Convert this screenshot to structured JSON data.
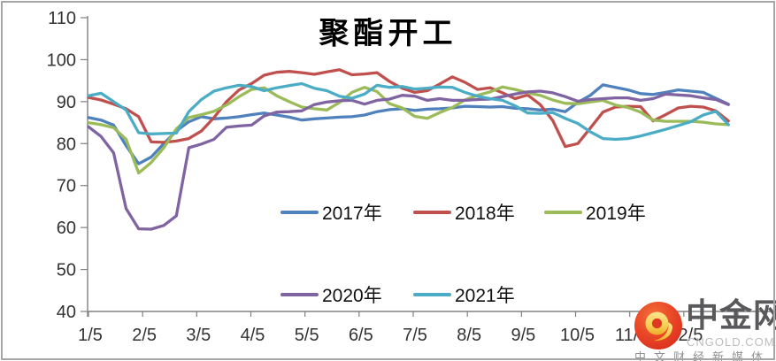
{
  "chart_data": {
    "type": "line",
    "title": "聚酯开工",
    "xlabel": "",
    "ylabel": "",
    "ylim": [
      40,
      110
    ],
    "y_ticks": [
      110,
      100,
      90,
      80,
      70,
      60,
      50,
      40
    ],
    "x_tick_labels": [
      "1/5",
      "2/5",
      "3/5",
      "4/5",
      "5/5",
      "6/5",
      "7/5",
      "8/5",
      "9/5",
      "10/5",
      "11/5",
      "12/5"
    ],
    "grid": false,
    "legend_position": "inside plot, two rows",
    "x_note": "weekly points from 1/5 to year end",
    "series": [
      {
        "name": "2017年",
        "color": "#4F81BD",
        "values": [
          86.2,
          85.6,
          84.4,
          79.5,
          75.2,
          76.8,
          80.0,
          83.0,
          85.2,
          86.4,
          85.9,
          86.1,
          86.4,
          86.9,
          87.3,
          86.8,
          86.3,
          85.6,
          85.9,
          86.1,
          86.3,
          86.4,
          86.8,
          87.6,
          88.1,
          88.3,
          87.9,
          88.2,
          88.3,
          88.5,
          88.9,
          88.8,
          88.7,
          88.8,
          88.4,
          88.3,
          88.0,
          88.2,
          87.6,
          89.8,
          91.5,
          94.0,
          93.4,
          92.8,
          91.9,
          91.7,
          92.2,
          92.8,
          92.5,
          92.2,
          90.8,
          89.4
        ]
      },
      {
        "name": "2018年",
        "color": "#C0504D",
        "values": [
          91.0,
          90.4,
          89.4,
          88.3,
          86.4,
          80.4,
          80.3,
          80.6,
          81.2,
          83.0,
          86.2,
          90.0,
          92.8,
          94.3,
          96.3,
          97.0,
          97.2,
          96.9,
          96.5,
          97.1,
          97.6,
          96.4,
          96.6,
          96.9,
          94.8,
          93.2,
          92.2,
          92.6,
          94.2,
          95.9,
          94.6,
          92.9,
          93.3,
          92.1,
          90.7,
          91.6,
          89.3,
          85.5,
          79.3,
          80.0,
          83.7,
          87.5,
          88.7,
          88.9,
          88.8,
          85.4,
          86.9,
          88.5,
          88.9,
          88.7,
          87.8,
          85.4
        ]
      },
      {
        "name": "2019年",
        "color": "#9BBB59",
        "values": [
          85.0,
          84.5,
          83.8,
          81.0,
          73.0,
          75.5,
          79.0,
          83.5,
          86.2,
          86.9,
          87.7,
          89.2,
          91.2,
          92.9,
          93.3,
          91.4,
          90.0,
          88.7,
          88.3,
          88.0,
          89.8,
          92.2,
          93.4,
          92.4,
          89.5,
          88.5,
          86.5,
          86.0,
          87.4,
          88.6,
          90.4,
          91.5,
          92.3,
          93.5,
          92.9,
          92.1,
          91.5,
          90.4,
          89.6,
          89.5,
          89.9,
          90.3,
          89.2,
          88.6,
          87.5,
          85.6,
          85.3,
          85.3,
          85.3,
          85.1,
          84.7,
          84.5
        ]
      },
      {
        "name": "2020年",
        "color": "#8064A2",
        "values": [
          84.0,
          81.7,
          77.8,
          64.5,
          59.7,
          59.6,
          60.5,
          62.8,
          79.0,
          79.9,
          81.0,
          83.9,
          84.2,
          84.4,
          86.6,
          87.5,
          87.6,
          87.8,
          89.3,
          89.9,
          90.2,
          90.3,
          89.4,
          90.3,
          90.6,
          91.5,
          91.3,
          90.3,
          90.7,
          90.3,
          90.3,
          90.5,
          90.6,
          91.2,
          91.8,
          92.3,
          92.5,
          92.1,
          91.2,
          90.1,
          90.5,
          90.7,
          90.9,
          90.9,
          90.3,
          90.7,
          91.8,
          91.6,
          91.4,
          90.9,
          90.5,
          89.3
        ]
      },
      {
        "name": "2021年",
        "color": "#4BACC6",
        "values": [
          91.4,
          92.0,
          90.0,
          88.0,
          82.6,
          82.3,
          82.4,
          82.5,
          87.6,
          90.5,
          92.5,
          93.3,
          93.9,
          93.6,
          92.6,
          93.3,
          93.8,
          94.3,
          93.2,
          92.6,
          91.3,
          90.8,
          91.8,
          93.9,
          93.4,
          93.6,
          93.0,
          93.2,
          93.5,
          93.4,
          92.2,
          91.3,
          90.7,
          90.3,
          89.0,
          87.3,
          87.2,
          87.4,
          86.0,
          84.8,
          82.8,
          81.2,
          81.0,
          81.2,
          81.8,
          82.6,
          83.4,
          84.3,
          85.2,
          86.8,
          87.7,
          84.5
        ]
      }
    ],
    "axis_color": "#808080",
    "tick_label_color": "#333333"
  },
  "watermark": {
    "brand": "中金网",
    "domain": "CNGOLD.COM.CN",
    "tagline": "中文财经新媒体"
  }
}
